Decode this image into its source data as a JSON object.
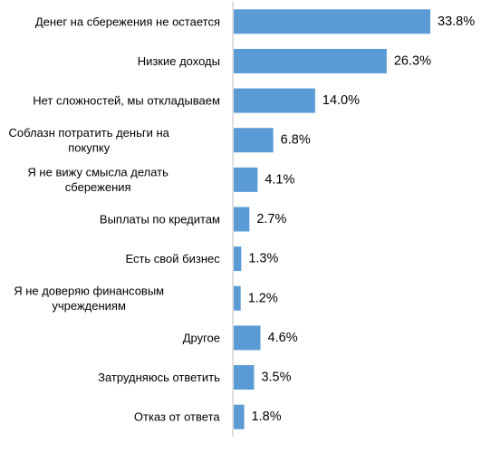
{
  "chart_data": {
    "type": "bar",
    "orientation": "horizontal",
    "categories": [
      "Денег на сбережения не остается",
      "Низкие доходы",
      "Нет сложностей, мы откладываем",
      "Соблазн потратить деньги на покупку",
      "Я не вижу смысла делать сбережения",
      "Выплаты по кредитам",
      "Есть свой бизнес",
      "Я не доверяю финансовым учреждениям",
      "Другое",
      "Затрудняюсь ответить",
      "Отказ от ответа"
    ],
    "category_lines": [
      [
        "Денег на сбережения не остается"
      ],
      [
        "Низкие доходы"
      ],
      [
        "Нет сложностей, мы откладываем"
      ],
      [
        "Соблазн потратить деньги на",
        "покупку"
      ],
      [
        "Я не вижу смысла делать",
        "сбережения"
      ],
      [
        "Выплаты по кредитам"
      ],
      [
        "Есть свой бизнес"
      ],
      [
        "Я не доверяю финансовым",
        "учреждениям"
      ],
      [
        "Другое"
      ],
      [
        "Затрудняюсь ответить"
      ],
      [
        "Отказ от ответа"
      ]
    ],
    "values": [
      33.8,
      26.3,
      14.0,
      6.8,
      4.1,
      2.7,
      1.3,
      1.2,
      4.6,
      3.5,
      1.8
    ],
    "value_labels": [
      "33.8%",
      "26.3%",
      "14.0%",
      "6.8%",
      "4.1%",
      "2.7%",
      "1.3%",
      "1.2%",
      "4.6%",
      "3.5%",
      "1.8%"
    ],
    "bar_color": "#5B9BD5",
    "axis_color": "#BFBFBF",
    "grid": false,
    "legend": "none",
    "xlim": [
      0,
      33.8
    ]
  }
}
